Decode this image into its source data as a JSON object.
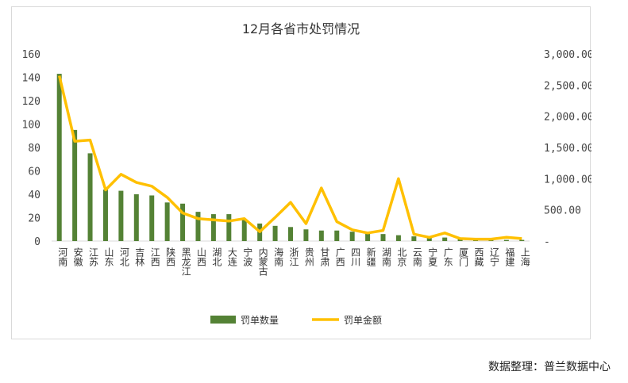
{
  "chart_data": {
    "type": "bar+line",
    "title": "12月各省市处罚情况",
    "categories": [
      "河南",
      "安徽",
      "江苏",
      "山东",
      "河北",
      "吉林",
      "江西",
      "陕西",
      "黑龙江",
      "山西",
      "湖北",
      "大连",
      "宁波",
      "内蒙古",
      "海南",
      "浙江",
      "贵州",
      "甘肃",
      "广西",
      "四川",
      "新疆",
      "湖南",
      "北京",
      "云南",
      "宁夏",
      "广东",
      "厦门",
      "西藏",
      "辽宁",
      "福建",
      "上海"
    ],
    "series": [
      {
        "name": "罚单数量",
        "type": "bar",
        "axis": "left",
        "color": "#548235",
        "values": [
          143,
          95,
          75,
          44,
          43,
          40,
          39,
          33,
          32,
          25,
          23,
          23,
          18,
          15,
          13,
          12,
          10,
          9,
          9,
          8,
          7,
          6,
          5,
          4,
          3,
          3,
          2,
          1,
          1,
          1,
          1
        ]
      },
      {
        "name": "罚单金额",
        "type": "line",
        "axis": "right",
        "color": "#ffc000",
        "values": [
          2650,
          1600,
          1620,
          820,
          1070,
          940,
          880,
          700,
          450,
          360,
          340,
          320,
          360,
          150,
          380,
          620,
          280,
          850,
          310,
          180,
          130,
          170,
          1000,
          110,
          60,
          130,
          40,
          30,
          30,
          60,
          40
        ]
      }
    ],
    "y_left": {
      "min": 0,
      "max": 160,
      "ticks": [
        "0",
        "20",
        "40",
        "60",
        "80",
        "100",
        "120",
        "140",
        "160"
      ]
    },
    "y_right": {
      "min": 0,
      "max": 3000,
      "ticks": [
        "-",
        "500.00",
        "1,000.00",
        "1,500.00",
        "2,000.00",
        "2,500.00",
        "3,000.00"
      ]
    },
    "legend_position": "bottom"
  },
  "source_note": "数据整理：普兰数据中心"
}
